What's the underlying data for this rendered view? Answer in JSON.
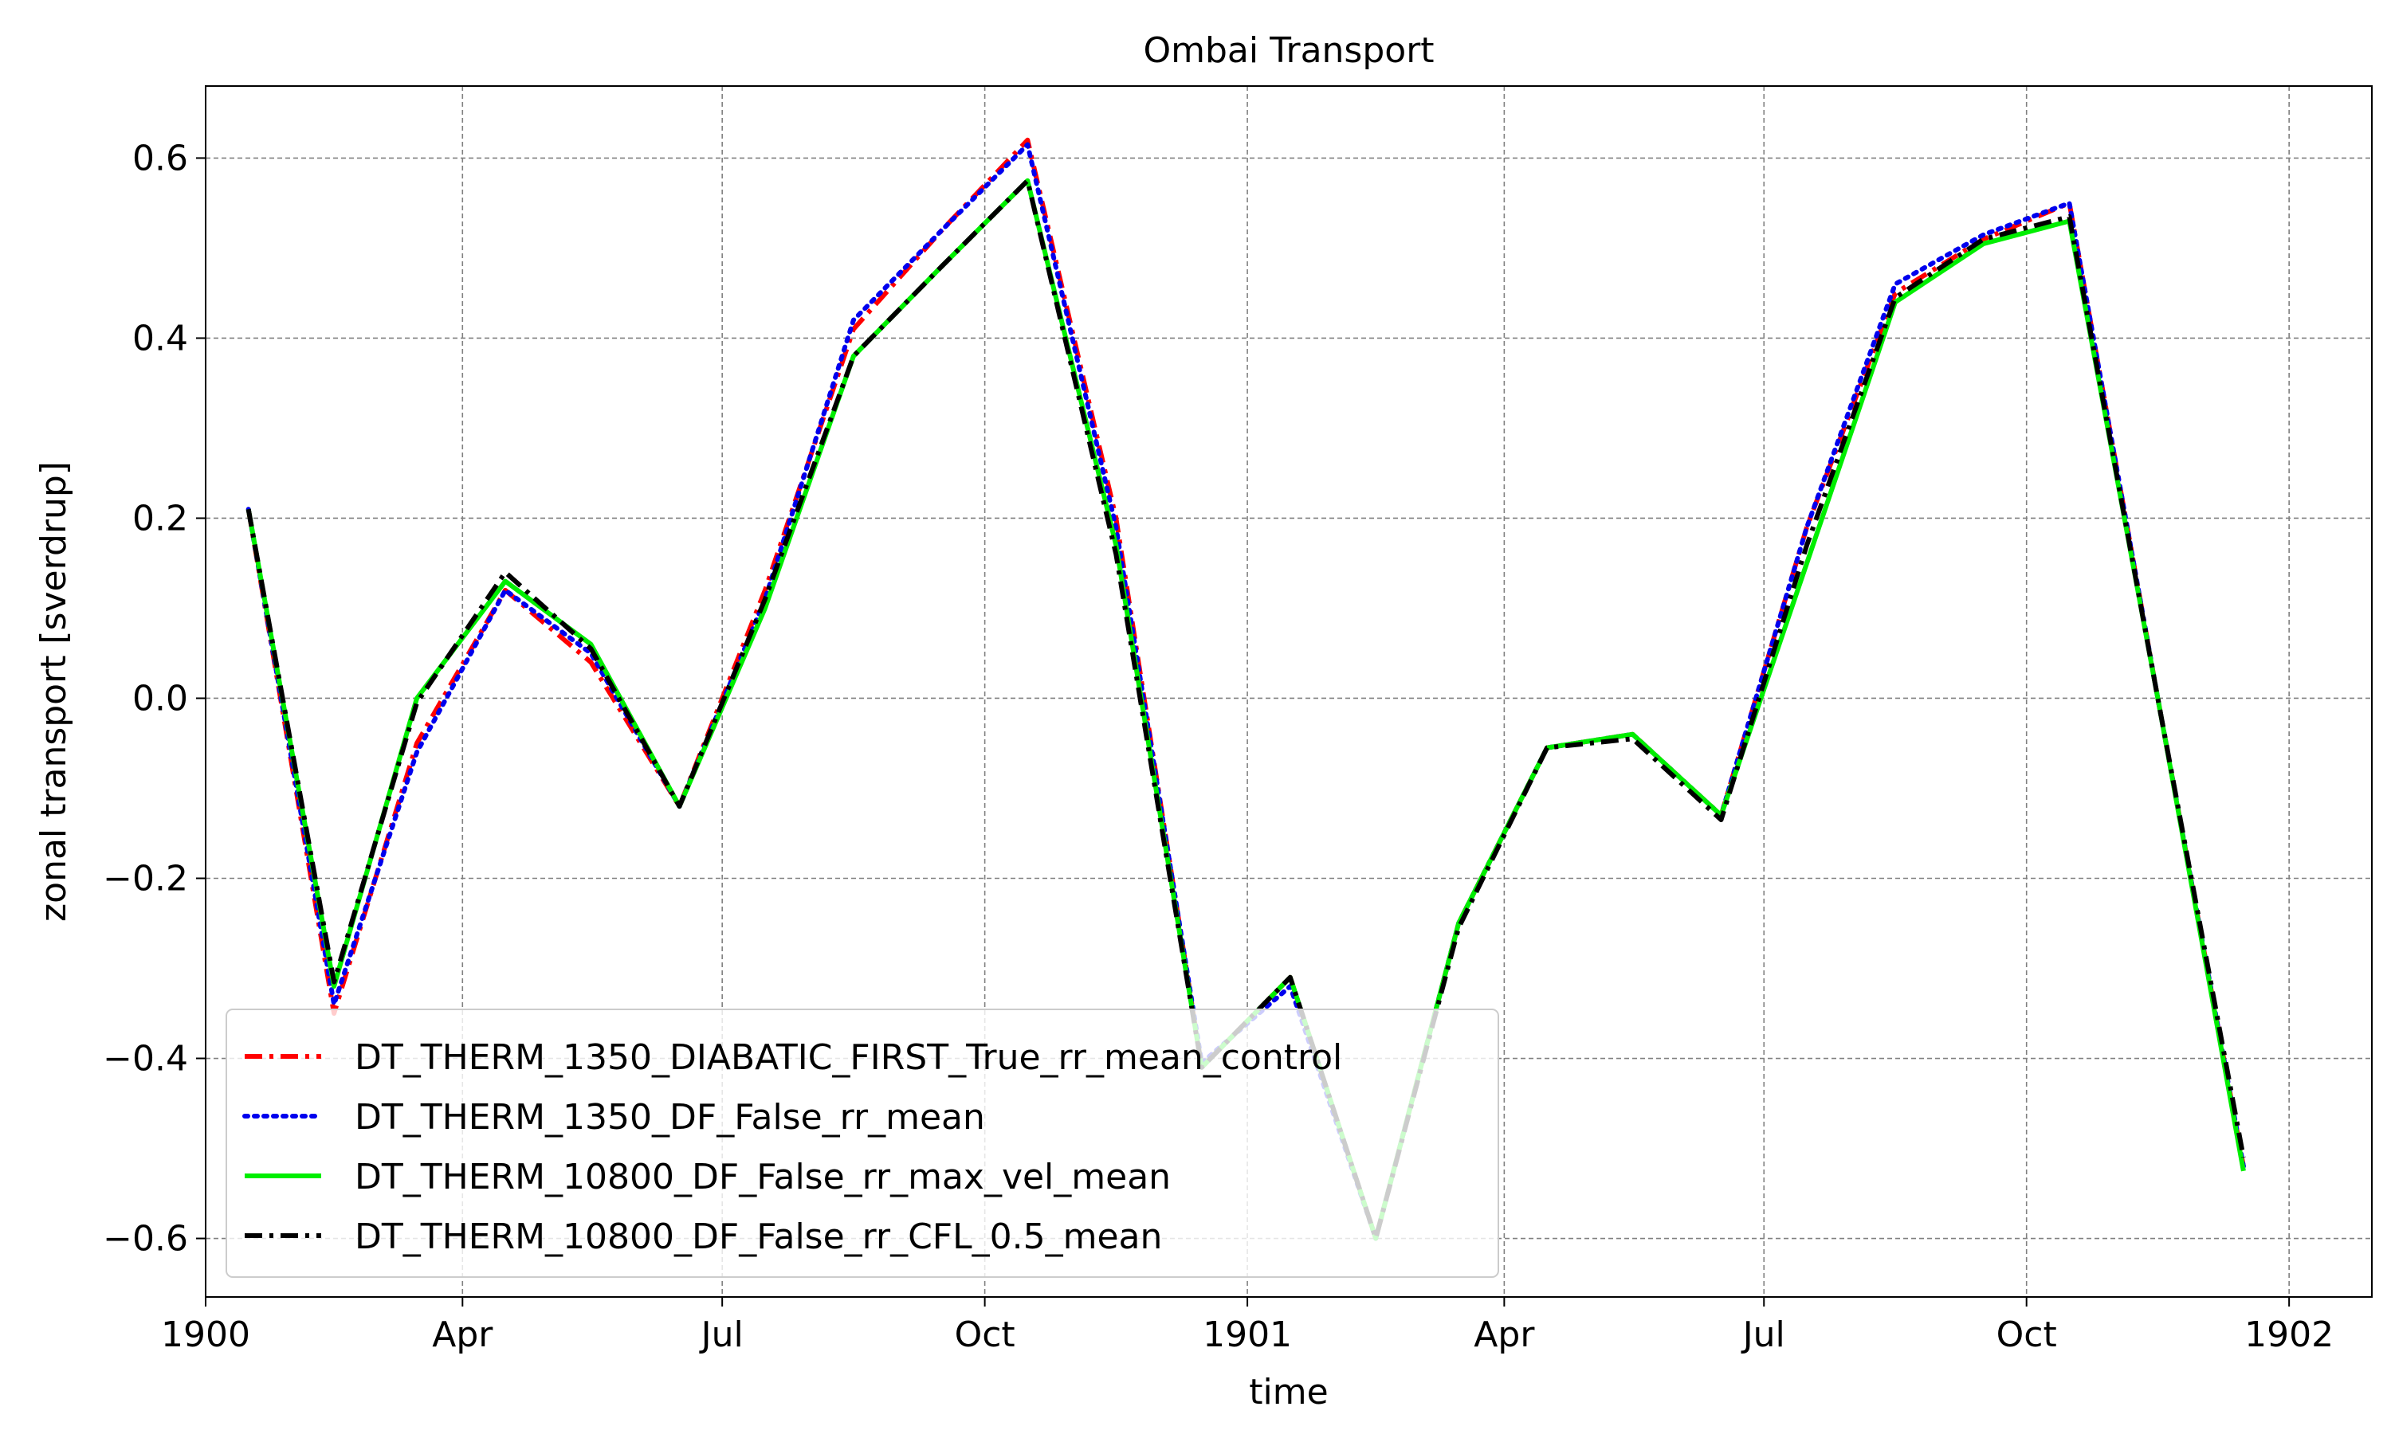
{
  "chart_data": {
    "type": "line",
    "title": "Ombai Transport",
    "xlabel": "time",
    "ylabel": "zonal transport [sverdrup]",
    "x_ticks": [
      {
        "date": "1900-01-01",
        "label": "1900"
      },
      {
        "date": "1900-04-01",
        "label": "Apr"
      },
      {
        "date": "1900-07-01",
        "label": "Jul"
      },
      {
        "date": "1900-10-01",
        "label": "Oct"
      },
      {
        "date": "1901-01-01",
        "label": "1901"
      },
      {
        "date": "1901-04-01",
        "label": "Apr"
      },
      {
        "date": "1901-07-01",
        "label": "Jul"
      },
      {
        "date": "1901-10-01",
        "label": "Oct"
      },
      {
        "date": "1902-01-01",
        "label": "1902"
      }
    ],
    "y_ticks": [
      {
        "value": -0.6,
        "label": "−0.6"
      },
      {
        "value": -0.4,
        "label": "−0.4"
      },
      {
        "value": -0.2,
        "label": "−0.2"
      },
      {
        "value": 0.0,
        "label": "0.0"
      },
      {
        "value": 0.2,
        "label": "0.2"
      },
      {
        "value": 0.4,
        "label": "0.4"
      },
      {
        "value": 0.6,
        "label": "0.6"
      }
    ],
    "xlim": [
      "1900-01-01",
      "1902-01-30"
    ],
    "ylim": [
      -0.665,
      0.68
    ],
    "grid": true,
    "legend_position": "lower-left",
    "x": [
      "1900-01-16",
      "1900-02-15",
      "1900-03-16",
      "1900-04-16",
      "1900-05-16",
      "1900-06-16",
      "1900-07-16",
      "1900-08-16",
      "1900-09-16",
      "1900-10-16",
      "1900-11-16",
      "1900-12-16",
      "1901-01-16",
      "1901-02-15",
      "1901-03-16",
      "1901-04-16",
      "1901-05-16",
      "1901-06-16",
      "1901-07-16",
      "1901-08-16",
      "1901-09-16",
      "1901-10-16",
      "1901-11-16",
      "1901-12-16"
    ],
    "series": [
      {
        "name": "DT_THERM_1350_DIABATIC_FIRST_True_rr_mean_control",
        "color": "#ff0000",
        "style": "dashdot",
        "values": [
          0.21,
          -0.35,
          -0.05,
          0.12,
          0.04,
          -0.12,
          0.12,
          0.41,
          0.52,
          0.62,
          0.2,
          -0.41,
          -0.31,
          -0.6,
          -0.25,
          -0.055,
          -0.04,
          -0.13,
          0.19,
          0.45,
          0.51,
          0.55,
          0.0,
          -0.52
        ]
      },
      {
        "name": "DT_THERM_1350_DF_False_rr_mean",
        "color": "#0000ee",
        "style": "dotted",
        "values": [
          0.21,
          -0.34,
          -0.06,
          0.12,
          0.05,
          -0.12,
          0.11,
          0.42,
          0.52,
          0.615,
          0.19,
          -0.405,
          -0.32,
          -0.6,
          -0.25,
          -0.055,
          -0.04,
          -0.13,
          0.19,
          0.46,
          0.515,
          0.55,
          0.0,
          -0.52
        ]
      },
      {
        "name": "DT_THERM_10800_DF_False_rr_max_vel_mean",
        "color": "#00ee00",
        "style": "solid",
        "values": [
          0.21,
          -0.32,
          0.0,
          0.13,
          0.06,
          -0.12,
          0.1,
          0.38,
          0.48,
          0.575,
          0.17,
          -0.41,
          -0.31,
          -0.6,
          -0.25,
          -0.055,
          -0.04,
          -0.13,
          0.15,
          0.44,
          0.505,
          0.53,
          0.0,
          -0.525
        ]
      },
      {
        "name": "DT_THERM_10800_DF_False_rr_CFL_0.5_mean",
        "color": "#000000",
        "style": "dashdot",
        "values": [
          0.21,
          -0.315,
          -0.005,
          0.14,
          0.055,
          -0.12,
          0.11,
          0.38,
          0.48,
          0.575,
          0.16,
          -0.41,
          -0.31,
          -0.6,
          -0.255,
          -0.055,
          -0.045,
          -0.135,
          0.17,
          0.445,
          0.51,
          0.535,
          0.0,
          -0.51
        ]
      }
    ]
  }
}
